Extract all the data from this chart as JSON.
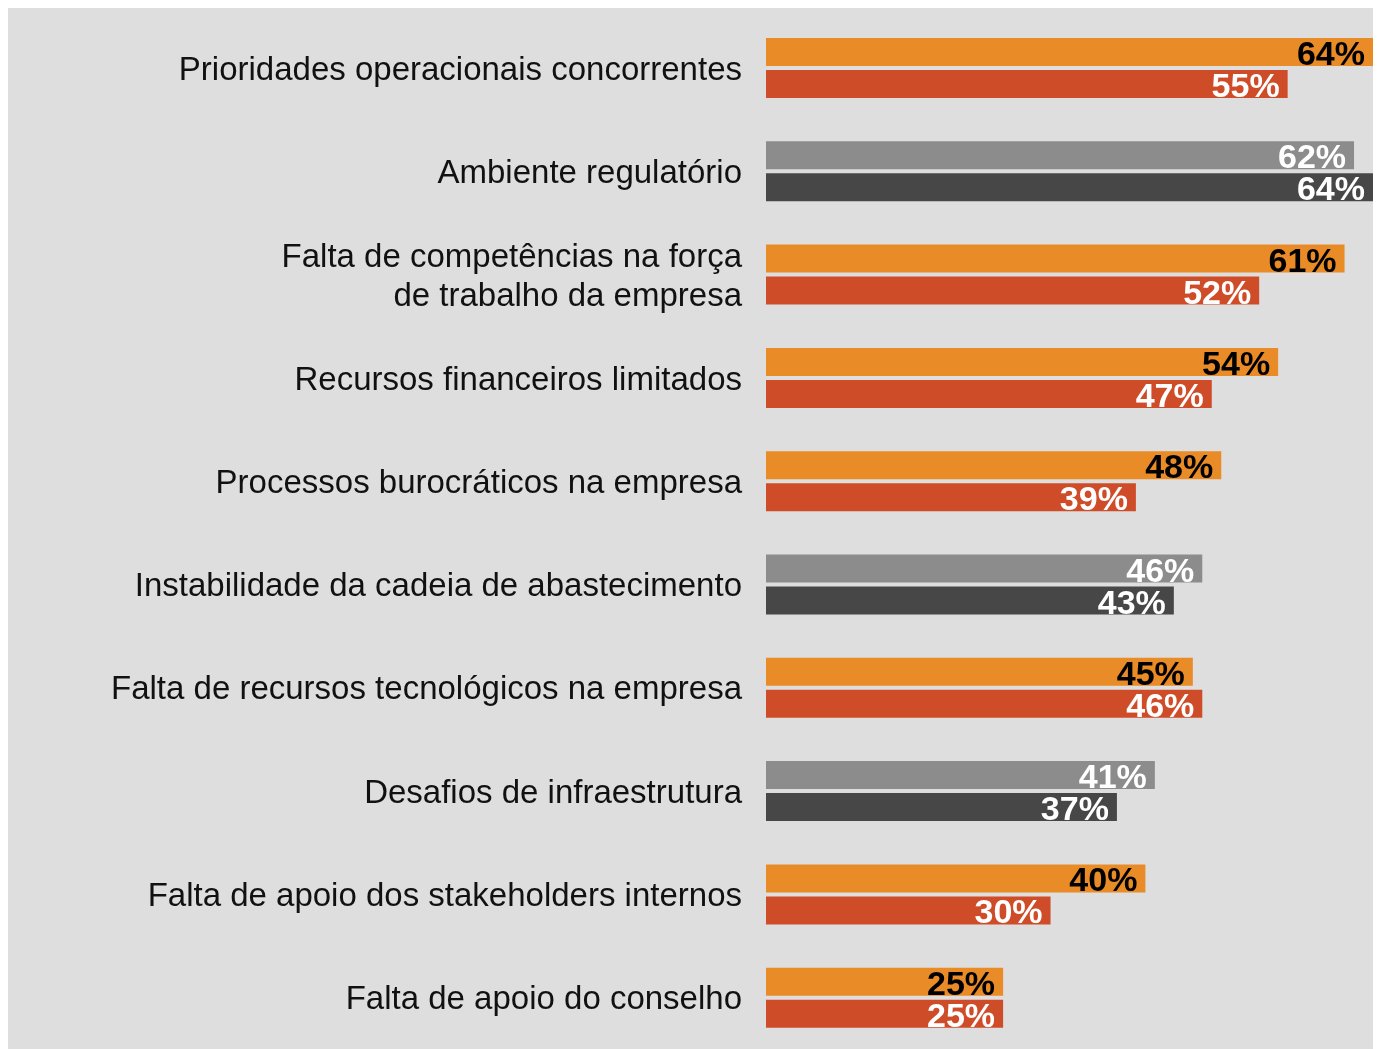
{
  "chart_data": {
    "type": "bar",
    "orientation": "horizontal",
    "categories": [
      "Prioridades operacionais concorrentes",
      "Ambiente regulatório",
      "Falta de competências na força de trabalho da empresa",
      "Recursos financeiros limitados",
      "Processos burocráticos na empresa",
      "Instabilidade da cadeia de abastecimento",
      "Falta de recursos tecnológicos na empresa",
      "Desafios de infraestrutura",
      "Falta de apoio dos stakeholders internos",
      "Falta de apoio do conselho"
    ],
    "series": [
      {
        "values": [
          64,
          62,
          61,
          54,
          48,
          46,
          45,
          41,
          40,
          25
        ],
        "value_labels": [
          "64%",
          "62%",
          "61%",
          "54%",
          "48%",
          "46%",
          "45%",
          "41%",
          "40%",
          "25%"
        ],
        "colors": [
          "#e98b26",
          "#8c8c8c",
          "#e98b26",
          "#e98b26",
          "#e98b26",
          "#8c8c8c",
          "#e98b26",
          "#8c8c8c",
          "#e98b26",
          "#e98b26"
        ]
      },
      {
        "values": [
          55,
          64,
          52,
          47,
          39,
          43,
          46,
          37,
          30,
          25
        ],
        "value_labels": [
          "55%",
          "64%",
          "52%",
          "47%",
          "39%",
          "43%",
          "46%",
          "37%",
          "30%",
          "25%"
        ],
        "colors": [
          "#cf4c28",
          "#474747",
          "#cf4c28",
          "#cf4c28",
          "#cf4c28",
          "#474747",
          "#cf4c28",
          "#474747",
          "#cf4c28",
          "#cf4c28"
        ]
      }
    ]
  }
}
